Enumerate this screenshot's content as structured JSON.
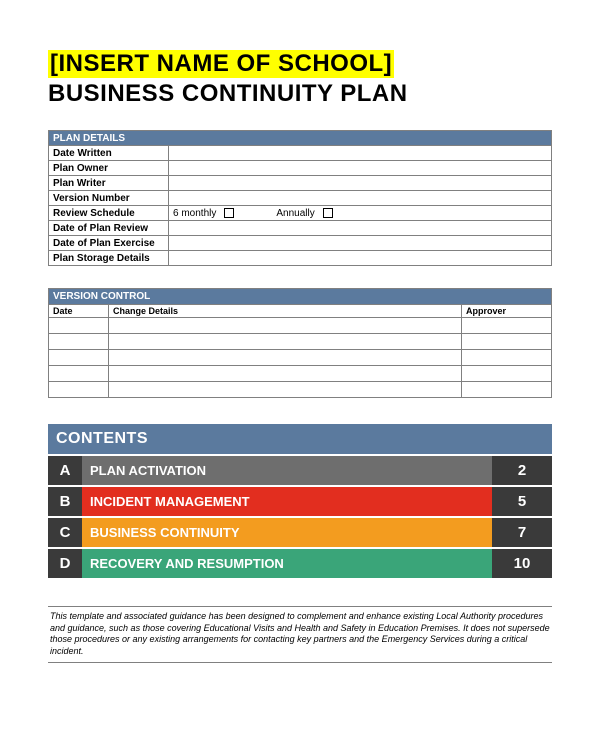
{
  "title": {
    "highlight_text": "[INSERT NAME OF SCHOOL]",
    "highlight_bg": "#ffff00",
    "subtitle": "BUSINESS CONTINUITY PLAN"
  },
  "colors": {
    "section_header_bg": "#5b7a9e",
    "section_header_text": "#ffffff",
    "border": "#808080",
    "contents_header_bg": "#5b7a9e",
    "letter_bg": "#3a3a3a",
    "page_bg": "#3a3a3a"
  },
  "plan_details": {
    "header": "PLAN DETAILS",
    "rows": [
      {
        "label": "Date Written",
        "value": ""
      },
      {
        "label": "Plan Owner",
        "value": ""
      },
      {
        "label": "Plan Writer",
        "value": ""
      },
      {
        "label": "Version Number",
        "value": ""
      }
    ],
    "review_row": {
      "label": "Review Schedule",
      "option1": "6 monthly",
      "option2": "Annually"
    },
    "rows2": [
      {
        "label": "Date of Plan Review",
        "value": ""
      },
      {
        "label": "Date of Plan Exercise",
        "value": ""
      },
      {
        "label": "Plan Storage Details",
        "value": ""
      }
    ]
  },
  "version_control": {
    "header": "VERSION CONTROL",
    "columns": [
      "Date",
      "Change Details",
      "Approver"
    ],
    "blank_rows": 5
  },
  "contents": {
    "header": "CONTENTS",
    "rows": [
      {
        "letter": "A",
        "title": "PLAN ACTIVATION",
        "page": "2",
        "bg": "#6e6e6e"
      },
      {
        "letter": "B",
        "title": "INCIDENT MANAGEMENT",
        "page": "5",
        "bg": "#e22e1f"
      },
      {
        "letter": "C",
        "title": "BUSINESS CONTINUITY",
        "page": "7",
        "bg": "#f39c1f"
      },
      {
        "letter": "D",
        "title": "RECOVERY AND RESUMPTION",
        "page": "10",
        "bg": "#3aa579"
      }
    ]
  },
  "disclaimer": "This template and associated guidance has been designed to complement and enhance existing Local Authority procedures and guidance, such as those covering Educational Visits and Health and Safety in Education Premises. It does not supersede those procedures or any existing arrangements for contacting key partners and the Emergency Services during a critical incident."
}
